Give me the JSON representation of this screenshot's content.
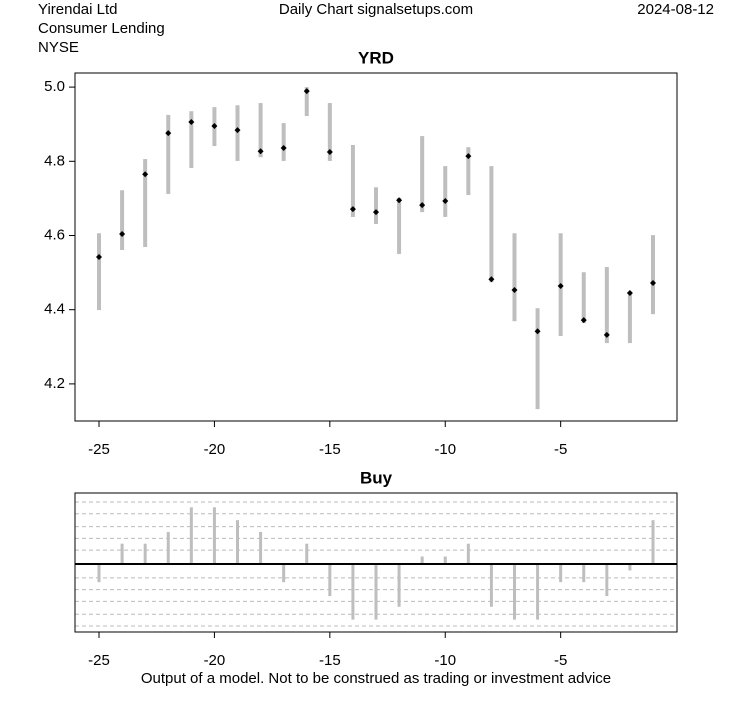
{
  "header": {
    "company": "Yirendai Ltd",
    "sector": "Consumer Lending",
    "exchange": "NYSE",
    "source": "Daily Chart signalsetups.com",
    "date": "2024-08-12"
  },
  "chart_data": [
    {
      "type": "range",
      "title": "YRD",
      "x": [
        -25,
        -24,
        -23,
        -22,
        -21,
        -20,
        -19,
        -18,
        -17,
        -16,
        -15,
        -14,
        -13,
        -12,
        -11,
        -10,
        -9,
        -8,
        -7,
        -6,
        -5,
        -4,
        -3,
        -2,
        -1
      ],
      "low": [
        4.399,
        4.561,
        4.569,
        4.712,
        4.782,
        4.841,
        4.801,
        4.811,
        4.801,
        4.922,
        4.801,
        4.65,
        4.631,
        4.55,
        4.663,
        4.65,
        4.709,
        4.474,
        4.369,
        4.132,
        4.329,
        4.364,
        4.31,
        4.31,
        4.388
      ],
      "high": [
        4.606,
        4.722,
        4.806,
        4.925,
        4.935,
        4.946,
        4.951,
        4.957,
        4.903,
        5.0,
        4.957,
        4.844,
        4.73,
        4.701,
        4.868,
        4.787,
        4.838,
        4.787,
        4.606,
        4.404,
        4.606,
        4.501,
        4.515,
        4.447,
        4.601
      ],
      "close": [
        4.542,
        4.604,
        4.765,
        4.876,
        4.906,
        4.895,
        4.884,
        4.827,
        4.836,
        4.989,
        4.825,
        4.671,
        4.663,
        4.695,
        4.682,
        4.693,
        4.814,
        4.482,
        4.453,
        4.342,
        4.464,
        4.372,
        4.332,
        4.445,
        4.472
      ],
      "range_color": "#bebebe",
      "close_color": "#000000",
      "xlim": [
        -26.04,
        0.04
      ],
      "ylim": [
        4.1,
        5.038
      ],
      "xticks": [
        -25,
        -20,
        -15,
        -10,
        -5
      ],
      "yticks": [
        4.2,
        4.4,
        4.6,
        4.8,
        {
          "value": 5,
          "label": "5.0"
        }
      ]
    },
    {
      "type": "bar",
      "title": "Buy",
      "x": [
        -25,
        -24,
        -23,
        -22,
        -21,
        -20,
        -19,
        -18,
        -17,
        -16,
        -15,
        -14,
        -13,
        -12,
        -11,
        -10,
        -9,
        -8,
        -7,
        -6,
        -5,
        -4,
        -3,
        -2,
        -1
      ],
      "values": [
        -1.7,
        1.9,
        1.9,
        3.0,
        5.3,
        5.3,
        4.1,
        3.0,
        -1.7,
        1.9,
        -3.0,
        -5.2,
        -5.2,
        -4.0,
        0.7,
        0.7,
        1.9,
        -4.0,
        -5.2,
        -5.2,
        -1.7,
        -1.7,
        -3.0,
        -0.6,
        4.1
      ],
      "color": "#bebebe",
      "xlim": [
        -26.04,
        0.04
      ],
      "ylim": [
        -6.36,
        6.64
      ],
      "xticks": [
        -25,
        -20,
        -15,
        -10,
        -5
      ],
      "grid_lines": [
        -5.8,
        -4.7,
        -3.5,
        -2.4,
        -1.3,
        1.3,
        2.4,
        3.5,
        4.7,
        5.8
      ]
    }
  ],
  "footer": "Output of a model. Not to be construed as trading or investment advice"
}
